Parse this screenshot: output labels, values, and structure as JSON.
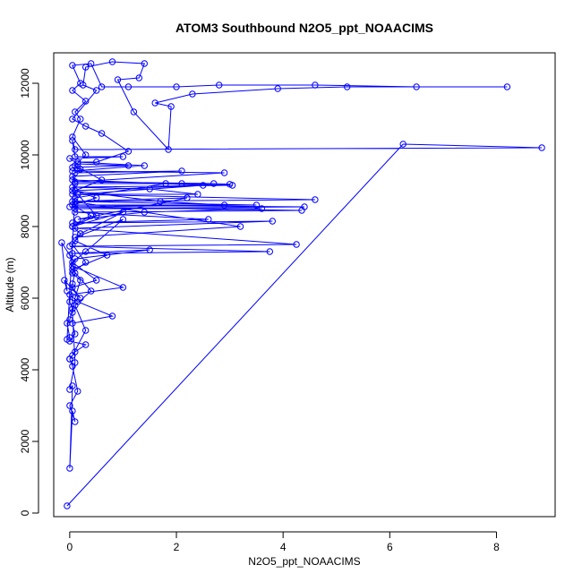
{
  "chart_data": {
    "type": "line",
    "title": "ATOM3 Southbound N2O5_ppt_NOAACIMS",
    "xlabel": "N2O5_ppt_NOAACIMS",
    "ylabel": "Altitude (m)",
    "xlim": [
      -0.3,
      9.1
    ],
    "ylim": [
      -100,
      12850
    ],
    "x_ticks": [
      0,
      2,
      4,
      6,
      8
    ],
    "x_tick_labels": [
      "0",
      "2",
      "4",
      "6",
      "8"
    ],
    "y_ticks": [
      0,
      2000,
      4000,
      6000,
      8000,
      10000,
      12000
    ],
    "y_tick_labels": [
      "0",
      "2000",
      "4000",
      "6000",
      "8000",
      "10000",
      "12000"
    ],
    "grid": false,
    "legend": "none",
    "colors": {
      "series": "#0000ff",
      "axes": "#000000",
      "background": "#ffffff"
    },
    "series": [
      {
        "points": [
          [
            -0.05,
            200
          ],
          [
            6.25,
            10300
          ],
          [
            8.85,
            10200
          ],
          [
            0.1,
            10150
          ],
          [
            0.05,
            10400
          ],
          [
            0.1,
            9950
          ],
          [
            1.0,
            9950
          ],
          [
            0.0,
            9900
          ],
          [
            0.15,
            9750
          ],
          [
            1.1,
            9700
          ],
          [
            0.05,
            9650
          ],
          [
            0.2,
            9600
          ],
          [
            0.1,
            9500
          ],
          [
            2.1,
            9550
          ],
          [
            0.05,
            9400
          ],
          [
            0.1,
            9200
          ],
          [
            2.1,
            9200
          ],
          [
            3.05,
            9150
          ],
          [
            0.05,
            9100
          ],
          [
            1.5,
            9050
          ],
          [
            2.4,
            8900
          ],
          [
            0.05,
            8900
          ],
          [
            4.6,
            8750
          ],
          [
            0.1,
            8700
          ],
          [
            3.5,
            8600
          ],
          [
            0.0,
            8550
          ],
          [
            4.35,
            8450
          ],
          [
            0.1,
            8400
          ],
          [
            2.6,
            8200
          ],
          [
            0.05,
            8100
          ],
          [
            3.8,
            8150
          ],
          [
            0.1,
            7950
          ],
          [
            4.25,
            7500
          ],
          [
            0.0,
            7450
          ],
          [
            3.75,
            7300
          ],
          [
            0.05,
            7250
          ],
          [
            1.5,
            7350
          ],
          [
            0.1,
            7100
          ],
          [
            0.05,
            6900
          ],
          [
            1.0,
            6300
          ],
          [
            0.0,
            6100
          ],
          [
            0.15,
            5900
          ],
          [
            0.8,
            5500
          ],
          [
            0.05,
            5300
          ],
          [
            0.1,
            5000
          ],
          [
            0.0,
            4800
          ],
          [
            0.3,
            4700
          ],
          [
            0.1,
            4500
          ],
          [
            0.0,
            4300
          ],
          [
            0.05,
            4100
          ],
          [
            0.15,
            3400
          ],
          [
            0.0,
            3000
          ],
          [
            0.1,
            2550
          ],
          [
            0.05,
            2850
          ],
          [
            0.0,
            1250
          ],
          [
            0.05,
            3550
          ],
          [
            0.0,
            3450
          ],
          [
            0.1,
            4200
          ],
          [
            0.05,
            5600
          ],
          [
            0.1,
            6000
          ],
          [
            0.2,
            6500
          ],
          [
            0.05,
            6700
          ],
          [
            0.3,
            7000
          ],
          [
            0.05,
            7500
          ],
          [
            0.2,
            7800
          ],
          [
            0.05,
            8000
          ],
          [
            0.4,
            8300
          ],
          [
            0.05,
            8600
          ],
          [
            0.5,
            8800
          ],
          [
            0.1,
            9000
          ],
          [
            0.6,
            9300
          ],
          [
            0.1,
            9700
          ],
          [
            0.3,
            10000
          ],
          [
            0.05,
            10500
          ],
          [
            0.2,
            11000
          ],
          [
            0.1,
            11200
          ],
          [
            0.3,
            11500
          ],
          [
            0.05,
            11800
          ],
          [
            0.2,
            12000
          ],
          [
            0.05,
            12500
          ],
          [
            0.4,
            12550
          ],
          [
            0.6,
            11900
          ],
          [
            1.1,
            11900
          ],
          [
            2.0,
            11900
          ],
          [
            2.8,
            11950
          ],
          [
            4.6,
            11950
          ],
          [
            6.5,
            11900
          ],
          [
            8.2,
            11900
          ],
          [
            5.2,
            11900
          ],
          [
            3.9,
            11850
          ],
          [
            2.3,
            11700
          ],
          [
            1.6,
            11450
          ],
          [
            1.9,
            11350
          ],
          [
            1.85,
            10150
          ],
          [
            1.2,
            11200
          ],
          [
            0.9,
            12100
          ],
          [
            1.3,
            12150
          ],
          [
            1.4,
            12550
          ],
          [
            0.8,
            12600
          ],
          [
            0.3,
            12450
          ],
          [
            0.25,
            11950
          ],
          [
            0.5,
            11800
          ],
          [
            0.05,
            11000
          ],
          [
            0.3,
            10800
          ],
          [
            0.6,
            10600
          ],
          [
            1.1,
            10100
          ],
          [
            0.5,
            9800
          ],
          [
            0.15,
            9800
          ],
          [
            1.4,
            9700
          ],
          [
            0.05,
            9550
          ],
          [
            2.9,
            9500
          ],
          [
            0.1,
            9250
          ],
          [
            2.7,
            9200
          ],
          [
            3.0,
            9180
          ],
          [
            0.05,
            9000
          ],
          [
            1.7,
            8700
          ],
          [
            2.9,
            8600
          ],
          [
            0.1,
            8600
          ],
          [
            4.4,
            8550
          ],
          [
            0.1,
            8500
          ],
          [
            3.6,
            8500
          ],
          [
            1.4,
            8400
          ],
          [
            0.15,
            8200
          ],
          [
            2.2,
            8800
          ],
          [
            0.05,
            8700
          ],
          [
            3.2,
            8000
          ],
          [
            0.1,
            7700
          ],
          [
            1.0,
            8200
          ],
          [
            0.3,
            7300
          ],
          [
            0.05,
            7000
          ],
          [
            0.5,
            6500
          ],
          [
            0.05,
            6300
          ],
          [
            0.2,
            6000
          ],
          [
            -0.1,
            6500
          ],
          [
            -0.05,
            6200
          ],
          [
            -0.15,
            7550
          ],
          [
            0.0,
            7200
          ],
          [
            0.1,
            6700
          ],
          [
            0.05,
            6400
          ],
          [
            0.0,
            5900
          ],
          [
            0.05,
            5700
          ],
          [
            0.0,
            5400
          ],
          [
            -0.05,
            5300
          ],
          [
            0.0,
            4900
          ],
          [
            -0.05,
            4850
          ],
          [
            0.1,
            8800
          ],
          [
            1.8,
            9200
          ],
          [
            0.05,
            9300
          ],
          [
            2.5,
            9150
          ],
          [
            0.15,
            8900
          ],
          [
            0.5,
            8300
          ],
          [
            0.05,
            8000
          ],
          [
            1.0,
            8400
          ],
          [
            0.2,
            7800
          ],
          [
            0.1,
            7600
          ],
          [
            0.7,
            7200
          ],
          [
            0.05,
            6800
          ],
          [
            0.4,
            6200
          ],
          [
            0.1,
            5800
          ],
          [
            0.3,
            5100
          ],
          [
            0.05,
            4400
          ],
          [
            0.0,
            4300
          ]
        ]
      }
    ]
  }
}
